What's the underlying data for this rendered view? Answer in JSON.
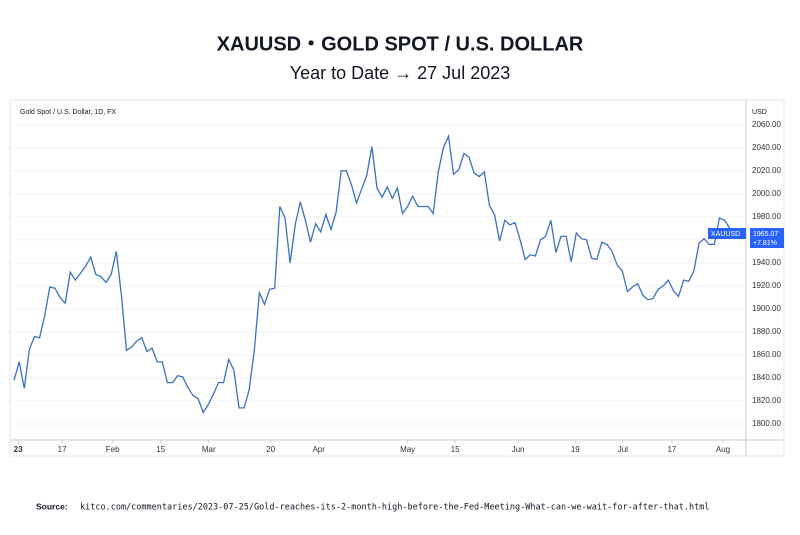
{
  "chart_data": {
    "type": "line",
    "title": "XAUUSD・GOLD SPOT / U.S. DOLLAR",
    "subtitle": "Year to Date → 27 Jul 2023",
    "panel_label": "Gold Spot / U.S. Dollar, 1D, FX",
    "y_axis_label": "USD",
    "symbol": "XAUUSD",
    "last_price": 1965.07,
    "change": "+7.81%",
    "source_label": "Source:",
    "source": "kitco.com/commentaries/2023-07-25/Gold-reaches-its-2-month-high-before-the-Fed-Meeting-What-can-we-wait-for-after-that.html",
    "color": "#3a72c0",
    "grid": true,
    "ylim": [
      1787,
      2078
    ],
    "yticks": [
      {
        "value": 1800,
        "label": "1800.00"
      },
      {
        "value": 1820,
        "label": "1820.00"
      },
      {
        "value": 1840,
        "label": "1840.00"
      },
      {
        "value": 1860,
        "label": "1860.00"
      },
      {
        "value": 1880,
        "label": "1880.00"
      },
      {
        "value": 1900,
        "label": "1900.00"
      },
      {
        "value": 1920,
        "label": "1920.00"
      },
      {
        "value": 1940,
        "label": "1940.00"
      },
      {
        "value": 1960,
        "label": "1960.00"
      },
      {
        "value": 1980,
        "label": "1980.00"
      },
      {
        "value": 2000,
        "label": "2000.00"
      },
      {
        "value": 2020,
        "label": "2020.00"
      },
      {
        "value": 2040,
        "label": "2040.00"
      },
      {
        "value": 2060,
        "label": "2060.00"
      }
    ],
    "xlim": [
      -0.4,
      143
    ],
    "xticks": [
      {
        "value": 0.8,
        "label": "23"
      },
      {
        "value": 9.4,
        "label": "17"
      },
      {
        "value": 19.3,
        "label": "Feb"
      },
      {
        "value": 28.7,
        "label": "15"
      },
      {
        "value": 38.1,
        "label": "Mar"
      },
      {
        "value": 50.2,
        "label": "20"
      },
      {
        "value": 59.6,
        "label": "Apr"
      },
      {
        "value": 77,
        "label": "May"
      },
      {
        "value": 86.3,
        "label": "15"
      },
      {
        "value": 98.6,
        "label": "Jun"
      },
      {
        "value": 109.8,
        "label": "19"
      },
      {
        "value": 119.1,
        "label": "Jul"
      },
      {
        "value": 128.7,
        "label": "17"
      },
      {
        "value": 138.7,
        "label": "Aug"
      }
    ],
    "values": [
      1838,
      1854,
      1831,
      1865,
      1876,
      1875,
      1894,
      1919,
      1918,
      1910,
      1905,
      1932,
      1925,
      1931,
      1937,
      1945,
      1930,
      1928,
      1923,
      1930,
      1950,
      1912,
      1864,
      1867,
      1872,
      1875,
      1863,
      1866,
      1854,
      1854,
      1836,
      1836,
      1842,
      1841,
      1832,
      1825,
      1822,
      1810,
      1817,
      1826,
      1836,
      1836,
      1856,
      1847,
      1814,
      1814,
      1830,
      1864,
      1914,
      1904,
      1917,
      1918,
      1989,
      1979,
      1940,
      1973,
      1993,
      1977,
      1958,
      1974,
      1967,
      1982,
      1969,
      1984,
      2020,
      2020,
      2008,
      1992,
      2004,
      2016,
      2041,
      2005,
      1997,
      2006,
      1996,
      2005,
      1983,
      1989,
      1998,
      1989,
      1989,
      1989,
      1983,
      2019,
      2040,
      2050,
      2017,
      2021,
      2035,
      2032,
      2018,
      2015,
      2019,
      1990,
      1982,
      1959,
      1977,
      1973,
      1975,
      1960,
      1943,
      1947,
      1946,
      1960,
      1963,
      1977,
      1949,
      1963,
      1963,
      1941,
      1966,
      1961,
      1960,
      1944,
      1943,
      1958,
      1956,
      1950,
      1938,
      1933,
      1915,
      1919,
      1922,
      1912,
      1908,
      1909,
      1917,
      1920,
      1925,
      1916,
      1911,
      1925,
      1924,
      1933,
      1957,
      1961,
      1956,
      1956,
      1979,
      1977,
      1970,
      1962,
      1965
    ]
  }
}
